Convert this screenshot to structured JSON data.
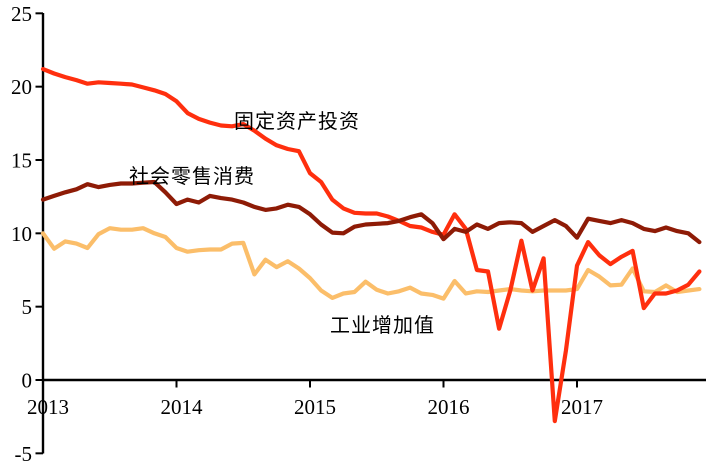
{
  "chart_data": {
    "type": "line",
    "title": "",
    "background_color": "#FFFFFF",
    "axis_color": "#000000",
    "grid": false,
    "legend": "inline-text-labels",
    "x_axis": {
      "tick_labels": [
        "2013",
        "2014",
        "2015",
        "2016",
        "2017"
      ],
      "months_total": 60,
      "start": "2013-01",
      "end": "2017-12"
    },
    "y_axis": {
      "ticks": [
        -5,
        0,
        5,
        10,
        15,
        20,
        25
      ],
      "min": -5,
      "max": 25
    },
    "series": [
      {
        "name": "工业增加值",
        "color": "#FBBE6A",
        "values": [
          10.0,
          8.95,
          9.45,
          9.3,
          9.0,
          9.95,
          10.35,
          10.25,
          10.25,
          10.35,
          10.0,
          9.75,
          9.0,
          8.75,
          8.85,
          8.9,
          8.9,
          9.3,
          9.35,
          7.2,
          8.2,
          7.7,
          8.1,
          7.6,
          6.95,
          6.1,
          5.6,
          5.9,
          6.0,
          6.7,
          6.15,
          5.9,
          6.05,
          6.3,
          5.9,
          5.8,
          5.55,
          6.75,
          5.9,
          6.05,
          6.0,
          6.1,
          6.2,
          6.1,
          6.05,
          6.1,
          6.1,
          6.1,
          6.2,
          7.5,
          7.05,
          6.45,
          6.5,
          7.6,
          6.05,
          6.0,
          6.45,
          6.0,
          6.1,
          6.2
        ]
      },
      {
        "name": "固定资产投资",
        "color": "#FF2F0E",
        "values": [
          21.2,
          20.9,
          20.65,
          20.45,
          20.2,
          20.3,
          20.25,
          20.2,
          20.15,
          19.95,
          19.75,
          19.5,
          19.0,
          18.2,
          17.8,
          17.55,
          17.35,
          17.3,
          17.45,
          17.0,
          16.45,
          16.0,
          15.75,
          15.6,
          14.1,
          13.5,
          12.3,
          11.7,
          11.4,
          11.35,
          11.35,
          11.15,
          10.85,
          10.5,
          10.4,
          10.1,
          9.9,
          11.3,
          10.3,
          7.5,
          7.4,
          3.5,
          6.1,
          9.5,
          6.1,
          8.3,
          -2.8,
          2.0,
          7.8,
          9.4,
          8.5,
          7.9,
          8.4,
          8.8,
          4.9,
          5.9,
          5.9,
          6.1,
          6.5,
          7.4
        ]
      },
      {
        "name": "社会零售消费",
        "color": "#8E1B06",
        "values": [
          12.3,
          12.55,
          12.8,
          13.0,
          13.35,
          13.15,
          13.3,
          13.4,
          13.4,
          13.45,
          13.5,
          12.8,
          12.0,
          12.3,
          12.1,
          12.55,
          12.4,
          12.3,
          12.1,
          11.8,
          11.6,
          11.7,
          11.95,
          11.8,
          11.3,
          10.6,
          10.05,
          10.0,
          10.45,
          10.6,
          10.65,
          10.7,
          10.85,
          11.1,
          11.3,
          10.7,
          9.6,
          10.3,
          10.1,
          10.6,
          10.3,
          10.7,
          10.75,
          10.7,
          10.1,
          10.5,
          10.9,
          10.5,
          9.7,
          11.0,
          10.85,
          10.7,
          10.9,
          10.7,
          10.3,
          10.15,
          10.4,
          10.15,
          10.0,
          9.4
        ]
      }
    ],
    "annotations": [
      {
        "text": "固定资产投资",
        "color": "#000000"
      },
      {
        "text": "社会零售消费",
        "color": "#000000"
      },
      {
        "text": "工业增加值",
        "color": "#000000"
      }
    ]
  }
}
